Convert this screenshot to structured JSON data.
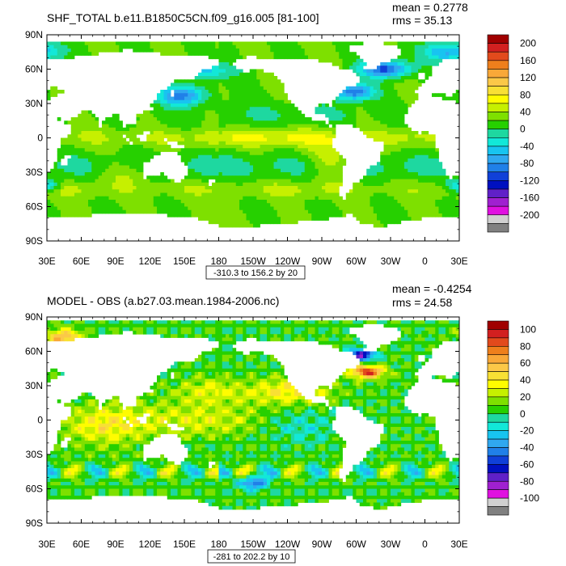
{
  "chart_data": [
    {
      "type": "heatmap",
      "title": "SHF_TOTAL b.e11.B1850C5CN.f09_g16.005 [81-100]",
      "stats": [
        "mean = 0.2778",
        "rms = 35.13"
      ],
      "x_ticks": [
        "30E",
        "60E",
        "90E",
        "120E",
        "150E",
        "180",
        "150W",
        "120W",
        "90W",
        "60W",
        "30W",
        "0",
        "30E"
      ],
      "y_ticks": [
        "90N",
        "60N",
        "30N",
        "0",
        "30S",
        "60S",
        "90S"
      ],
      "xlim": [
        30,
        390
      ],
      "ylim": [
        -90,
        90
      ],
      "contour_info": "-310.3 to 156.2 by 20",
      "colorbar": {
        "labels": [
          "200",
          "160",
          "120",
          "80",
          "40",
          "0",
          "-40",
          "-80",
          "-120",
          "-160",
          "-200"
        ],
        "colors": [
          "#ffffff",
          "#a00000",
          "#d22020",
          "#e24a1c",
          "#ee7f1c",
          "#f9a838",
          "#fbc848",
          "#f8e034",
          "#fffc00",
          "#c6f000",
          "#7ee000",
          "#26d000",
          "#1ed8a0",
          "#12e8d8",
          "#18c4f0",
          "#30a8f0",
          "#2080e8",
          "#1040d8",
          "#0010c0",
          "#6020c8",
          "#a020d0",
          "#e010e0",
          "#d0d0d0",
          "#808080"
        ]
      },
      "land_color": "#ffffff",
      "fields": {
        "base": 0,
        "equatorial_pacific_east": 35,
        "equatorial_atlantic": 25,
        "western_boundary_kuroshio": -110,
        "western_boundary_gulf_stream": -120,
        "north_atlantic_subpolar": -130,
        "southern_ocean_band": 25,
        "subtropical_south": -25
      }
    },
    {
      "type": "heatmap",
      "title": "MODEL - OBS (a.b27.03.mean.1984-2006.nc)",
      "stats": [
        "mean = -0.4254",
        "rms = 24.58"
      ],
      "x_ticks": [
        "30E",
        "60E",
        "90E",
        "120E",
        "150E",
        "180",
        "150W",
        "120W",
        "90W",
        "60W",
        "30W",
        "0",
        "30E"
      ],
      "y_ticks": [
        "90N",
        "60N",
        "30N",
        "0",
        "30S",
        "60S",
        "90S"
      ],
      "xlim": [
        30,
        390
      ],
      "ylim": [
        -90,
        90
      ],
      "contour_info": "-281 to 202.2 by 10",
      "colorbar": {
        "labels": [
          "100",
          "80",
          "60",
          "40",
          "20",
          "0",
          "-20",
          "-40",
          "-60",
          "-80",
          "-100"
        ],
        "colors": [
          "#ffffff",
          "#a00000",
          "#d22020",
          "#e24a1c",
          "#ee7f1c",
          "#f9a838",
          "#fbc848",
          "#f8e034",
          "#fffc00",
          "#c6f000",
          "#7ee000",
          "#26d000",
          "#1ed8a0",
          "#12e8d8",
          "#18c4f0",
          "#30a8f0",
          "#2080e8",
          "#1040d8",
          "#0010c0",
          "#6020c8",
          "#a020d0",
          "#e010e0",
          "#d0d0d0",
          "#808080"
        ]
      },
      "land_color": "#ffffff",
      "fields": {
        "base": -5,
        "gulf_stream_bias": 85,
        "labrador_sea_bias": -80,
        "southern_ocean_mixed": 35,
        "tropical_indian": 30,
        "tropical_pacific": 25,
        "east_pacific": -20
      }
    }
  ]
}
